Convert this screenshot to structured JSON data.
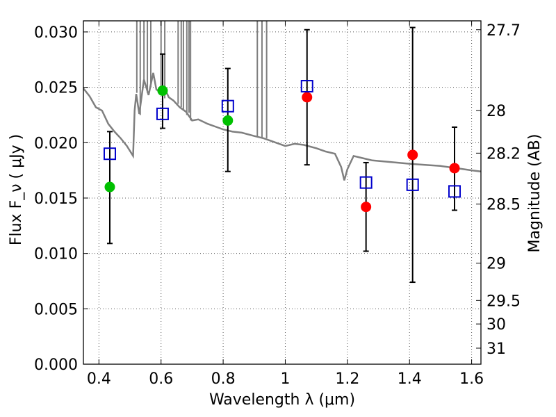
{
  "chart_data": {
    "type": "scatter",
    "title": "",
    "xlabel": "Wavelength  λ (μm)",
    "ylabel": "Flux  F_ν  ( μJy )",
    "y2label": "Magnitude (AB)",
    "xlim": [
      0.35,
      1.63
    ],
    "ylim": [
      0.0,
      0.031
    ],
    "grid": true,
    "x_ticks": [
      "0.4",
      "0.6",
      "0.8",
      "1",
      "1.2",
      "1.4",
      "1.6"
    ],
    "y_ticks": [
      "0.000",
      "0.005",
      "0.010",
      "0.015",
      "0.020",
      "0.025",
      "0.030"
    ],
    "y2_ticks": [
      {
        "label": "27.7",
        "mag": 27.7
      },
      {
        "label": "28",
        "mag": 28.0
      },
      {
        "label": "28.2",
        "mag": 28.2
      },
      {
        "label": "28.5",
        "mag": 28.5
      },
      {
        "label": "29",
        "mag": 29.0
      },
      {
        "label": "29.5",
        "mag": 29.5
      },
      {
        "label": "30",
        "mag": 30.0
      },
      {
        "label": "31",
        "mag": 31.0
      }
    ],
    "model_spectrum": {
      "color": "#7f7f7f",
      "points": [
        [
          0.35,
          0.0249
        ],
        [
          0.37,
          0.0242
        ],
        [
          0.39,
          0.0232
        ],
        [
          0.41,
          0.0229
        ],
        [
          0.43,
          0.0217
        ],
        [
          0.45,
          0.021
        ],
        [
          0.47,
          0.0204
        ],
        [
          0.49,
          0.0197
        ],
        [
          0.51,
          0.0188
        ],
        [
          0.515,
          0.0229
        ],
        [
          0.52,
          0.0244
        ],
        [
          0.53,
          0.0226
        ],
        [
          0.545,
          0.0257
        ],
        [
          0.56,
          0.0243
        ],
        [
          0.575,
          0.0263
        ],
        [
          0.585,
          0.0248
        ],
        [
          0.6,
          0.0245
        ],
        [
          0.61,
          0.025
        ],
        [
          0.625,
          0.0241
        ],
        [
          0.64,
          0.0238
        ],
        [
          0.66,
          0.0232
        ],
        [
          0.68,
          0.0228
        ],
        [
          0.7,
          0.022
        ],
        [
          0.72,
          0.0221
        ],
        [
          0.75,
          0.0217
        ],
        [
          0.78,
          0.0214
        ],
        [
          0.8,
          0.0212
        ],
        [
          0.83,
          0.021
        ],
        [
          0.86,
          0.0209
        ],
        [
          0.9,
          0.0206
        ],
        [
          0.93,
          0.0204
        ],
        [
          0.96,
          0.0201
        ],
        [
          1.0,
          0.0197
        ],
        [
          1.03,
          0.0199
        ],
        [
          1.06,
          0.0198
        ],
        [
          1.1,
          0.0195
        ],
        [
          1.13,
          0.0192
        ],
        [
          1.16,
          0.019
        ],
        [
          1.18,
          0.0178
        ],
        [
          1.19,
          0.0166
        ],
        [
          1.2,
          0.0176
        ],
        [
          1.22,
          0.0188
        ],
        [
          1.25,
          0.0186
        ],
        [
          1.28,
          0.0184
        ],
        [
          1.32,
          0.0183
        ],
        [
          1.36,
          0.0182
        ],
        [
          1.4,
          0.0181
        ],
        [
          1.45,
          0.018
        ],
        [
          1.5,
          0.0179
        ],
        [
          1.55,
          0.0177
        ],
        [
          1.6,
          0.0175
        ],
        [
          1.63,
          0.0174
        ]
      ],
      "spikes": [
        [
          0.522,
          0.0245
        ],
        [
          0.533,
          0.0225
        ],
        [
          0.545,
          0.0255
        ],
        [
          0.556,
          0.0245
        ],
        [
          0.567,
          0.025
        ],
        [
          0.6,
          0.0245
        ],
        [
          0.612,
          0.024
        ],
        [
          0.655,
          0.0235
        ],
        [
          0.665,
          0.0232
        ],
        [
          0.672,
          0.023
        ],
        [
          0.683,
          0.0225
        ],
        [
          0.69,
          0.0227
        ],
        [
          0.695,
          0.022
        ],
        [
          0.91,
          0.0205
        ],
        [
          0.925,
          0.0204
        ],
        [
          0.94,
          0.0204
        ]
      ]
    },
    "series": [
      {
        "marker": "circle",
        "color": "#00c000",
        "points": [
          [
            0.435,
            0.016
          ],
          [
            0.605,
            0.0247
          ],
          [
            0.815,
            0.022
          ]
        ]
      },
      {
        "marker": "circle",
        "color": "#ff0000",
        "points": [
          [
            1.07,
            0.0241
          ],
          [
            1.26,
            0.0142
          ],
          [
            1.41,
            0.0189
          ],
          [
            1.545,
            0.0177
          ]
        ]
      },
      {
        "marker": "square",
        "color": "#0000cc",
        "points": [
          [
            0.435,
            0.019
          ],
          [
            0.605,
            0.0226
          ],
          [
            0.815,
            0.0233
          ],
          [
            1.07,
            0.0251
          ],
          [
            1.26,
            0.0164
          ],
          [
            1.41,
            0.0162
          ],
          [
            1.545,
            0.0156
          ]
        ]
      }
    ],
    "error_bars": [
      {
        "x": 0.435,
        "low": 0.0109,
        "high": 0.021
      },
      {
        "x": 0.605,
        "low": 0.0213,
        "high": 0.028
      },
      {
        "x": 0.815,
        "low": 0.0174,
        "high": 0.0267
      },
      {
        "x": 1.07,
        "low": 0.018,
        "high": 0.0302
      },
      {
        "x": 1.26,
        "low": 0.0102,
        "high": 0.0182
      },
      {
        "x": 1.41,
        "low": 0.0074,
        "high": 0.0304
      },
      {
        "x": 1.545,
        "low": 0.0139,
        "high": 0.0214
      }
    ]
  }
}
